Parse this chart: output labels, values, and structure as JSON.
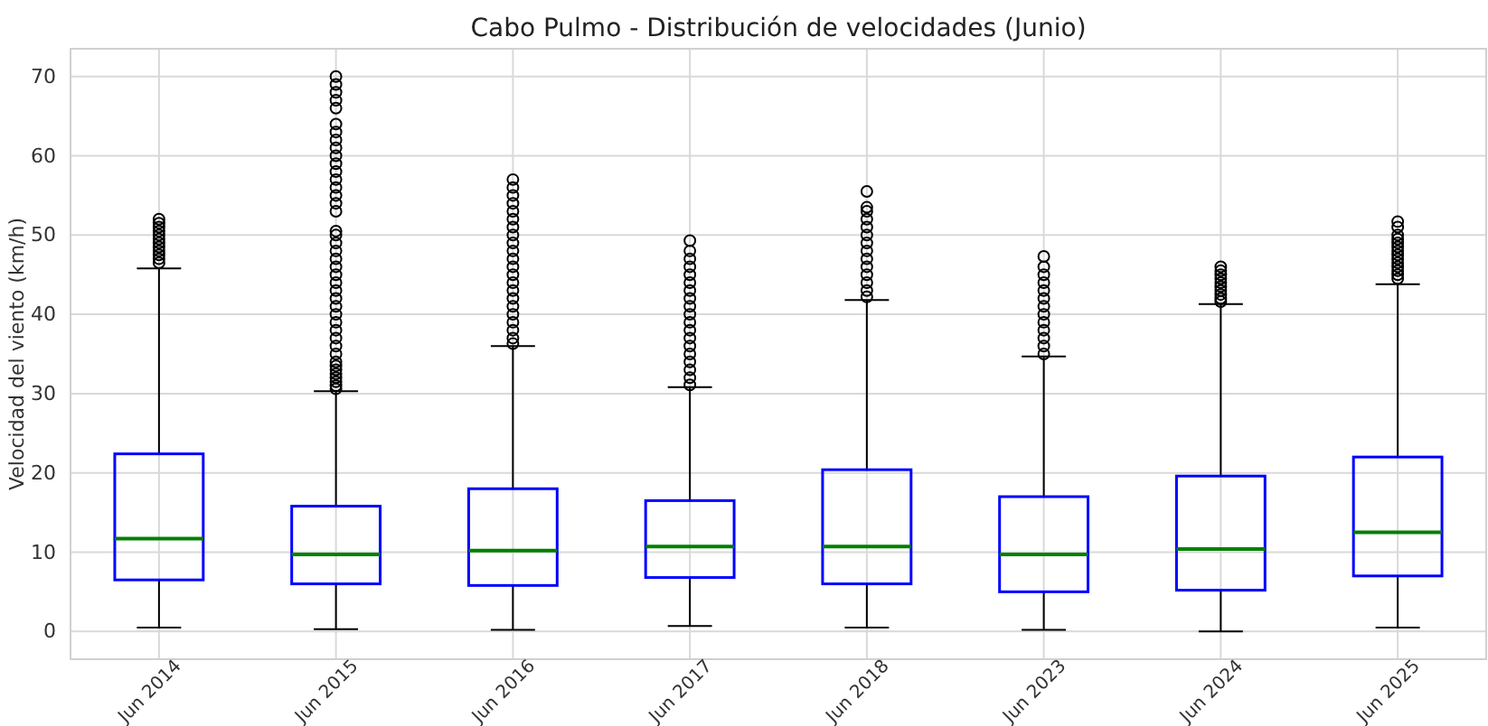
{
  "chart_data": {
    "type": "box",
    "title": "Cabo Pulmo - Distribución de velocidades (Junio)",
    "ylabel": "Velocidad del viento (km/h)",
    "categories": [
      "Jun 2014",
      "Jun 2015",
      "Jun 2016",
      "Jun 2017",
      "Jun 2018",
      "Jun 2023",
      "Jun 2024",
      "Jun 2025"
    ],
    "ylim": [
      -3.5,
      73.5
    ],
    "yticks": [
      0,
      10,
      20,
      30,
      40,
      50,
      60,
      70
    ],
    "grid": true,
    "marker": "circle",
    "color": "#0000ff",
    "boxes": [
      {
        "low": 0.5,
        "q1": 6.5,
        "median": 11.7,
        "q3": 22.4,
        "high": 45.8,
        "outliers": [
          46.5,
          47,
          47.5,
          48,
          48.5,
          49,
          49.5,
          50,
          50.5,
          51,
          51.5,
          52
        ]
      },
      {
        "low": 0.3,
        "q1": 6,
        "median": 9.7,
        "q3": 15.8,
        "high": 30.3,
        "outliers": [
          30.6,
          31,
          31.5,
          32,
          32.5,
          33,
          33.5,
          34,
          35,
          36,
          37,
          38,
          39,
          40,
          41,
          42,
          43,
          44,
          45,
          46,
          47,
          48,
          49,
          50,
          50.5,
          53,
          54,
          55,
          56,
          57,
          58,
          59,
          60,
          61,
          62,
          63,
          64,
          66,
          67,
          68,
          69,
          70
        ]
      },
      {
        "low": 0.2,
        "q1": 5.8,
        "median": 10.2,
        "q3": 18,
        "high": 36,
        "outliers": [
          36.3,
          37,
          38,
          39,
          40,
          41,
          42,
          43,
          44,
          45,
          46,
          47,
          48,
          49,
          50,
          51,
          52,
          53,
          54,
          55,
          56,
          57
        ]
      },
      {
        "low": 0.7,
        "q1": 6.8,
        "median": 10.7,
        "q3": 16.5,
        "high": 30.8,
        "outliers": [
          31.1,
          32,
          33,
          34,
          35,
          36,
          37,
          38,
          39,
          40,
          41,
          42,
          43,
          44,
          45,
          46,
          47,
          48,
          49.3
        ]
      },
      {
        "low": 0.5,
        "q1": 6,
        "median": 10.7,
        "q3": 20.4,
        "high": 41.8,
        "outliers": [
          42.2,
          43,
          44,
          45,
          46,
          47,
          48,
          49,
          50,
          51,
          52,
          53,
          53.5,
          55.5
        ]
      },
      {
        "low": 0.2,
        "q1": 5,
        "median": 9.7,
        "q3": 17,
        "high": 34.7,
        "outliers": [
          35,
          36,
          37,
          38,
          39,
          40,
          41,
          42,
          43,
          44,
          45,
          46,
          47.3
        ]
      },
      {
        "low": 0,
        "q1": 5.2,
        "median": 10.4,
        "q3": 19.6,
        "high": 41.3,
        "outliers": [
          41.6,
          42,
          42.5,
          43,
          43.5,
          44,
          44.5,
          45,
          45.5,
          46
        ]
      },
      {
        "low": 0.5,
        "q1": 7,
        "median": 12.5,
        "q3": 22,
        "high": 43.8,
        "outliers": [
          44.5,
          45,
          45.5,
          46,
          46.5,
          47,
          47.5,
          48,
          48.5,
          49,
          49.5,
          50,
          51,
          51.7
        ]
      }
    ]
  }
}
